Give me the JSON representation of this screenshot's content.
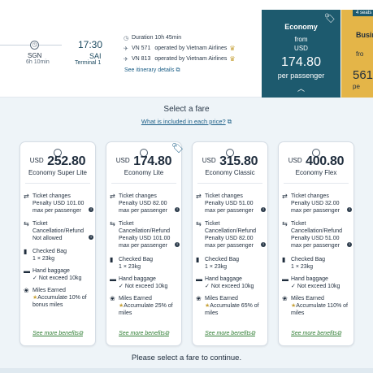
{
  "flight": {
    "stop_code": "SGN",
    "stop_duration": "6h 10min",
    "arrival_time": "17:30",
    "arrival_code": "SAI",
    "arrival_terminal": "Terminal 1",
    "duration": "Duration 10h 45min",
    "legs": [
      {
        "flight": "VN 571",
        "operator": "operated by Vietnam Airlines"
      },
      {
        "flight": "VN 813",
        "operator": "operated by Vietnam Airlines"
      }
    ],
    "itinerary_link": "See itinerary details"
  },
  "class_cards": {
    "economy": {
      "label": "Economy",
      "from": "from",
      "currency": "USD",
      "price": "174.80",
      "per": "per passenger"
    },
    "business": {
      "badge": "4 seats",
      "label": "Busin",
      "from": "fro",
      "price": "561",
      "per": "pe"
    }
  },
  "fares": {
    "title": "Select a fare",
    "included_link": "What is included in each price?",
    "see_more": "See more benefits",
    "continue_text": "Please select a fare to continue.",
    "headers": {
      "ticket_changes": "Ticket changes",
      "refund": "Ticket Cancellation/Refund",
      "checked_bag": "Checked Bag",
      "hand_baggage": "Hand baggage",
      "miles": "Miles Earned"
    },
    "cards": [
      {
        "currency": "USD",
        "price": "252.80",
        "name": "Economy Super Lite",
        "change_1": "Penalty USD 101.00",
        "change_2": "max per passenger",
        "refund_1": "Not allowed",
        "bag": "1 × 23kg",
        "hand": "Not exceed 10kg",
        "miles_1": "Accumulate 10% of",
        "miles_2": "bonus miles"
      },
      {
        "currency": "USD",
        "price": "174.80",
        "name": "Economy Lite",
        "change_1": "Penalty USD 82.00",
        "change_2": "max per passenger",
        "refund_1": "Penalty USD 101.00",
        "refund_2": "max per passenger",
        "bag": "1 × 23kg",
        "hand": "Not exceed 10kg",
        "miles_1": "Accumulate 25% of",
        "miles_2": "miles"
      },
      {
        "currency": "USD",
        "price": "315.80",
        "name": "Economy Classic",
        "change_1": "Penalty USD 51.00",
        "change_2": "max per passenger",
        "refund_1": "Penalty USD 82.00",
        "refund_2": "max per passenger",
        "bag": "1 × 23kg",
        "hand": "Not exceed 10kg",
        "miles_1": "Accumulate 65% of",
        "miles_2": "miles"
      },
      {
        "currency": "USD",
        "price": "400.80",
        "name": "Economy Flex",
        "change_1": "Penalty USD 32.00",
        "change_2": "max per passenger",
        "refund_1": "Penalty USD 51.00",
        "refund_2": "max per passenger",
        "bag": "1 × 23kg",
        "hand": "Not exceed 10kg",
        "miles_1": "Accumulate 110% of",
        "miles_2": "miles"
      }
    ]
  },
  "colors": {
    "economy_card": "#1d5a6e",
    "business_card": "#e4b548",
    "link": "#1b5e86",
    "benefit_link": "#2e7d32"
  }
}
